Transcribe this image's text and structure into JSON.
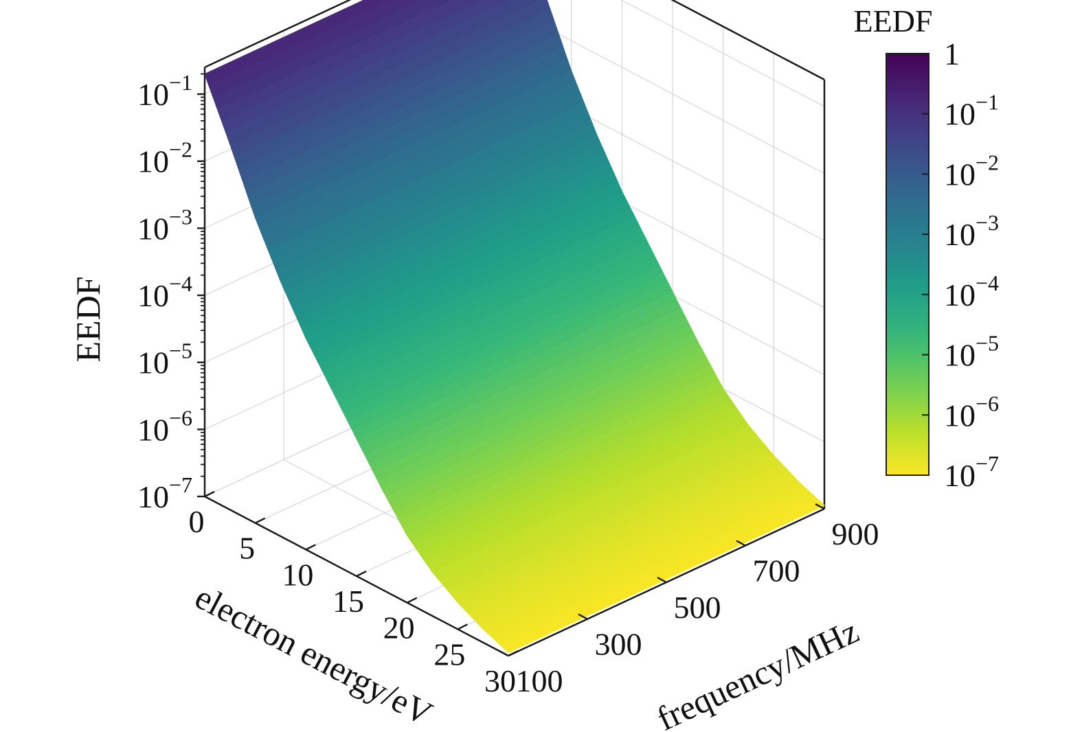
{
  "chart_data": {
    "type": "surface3d",
    "zscale": "log",
    "x_axis": {
      "label": "electron energy/eV",
      "range": [
        0,
        30
      ],
      "ticks": [
        0,
        5,
        10,
        15,
        20,
        25,
        30
      ]
    },
    "y_axis": {
      "label": "frequency/MHz",
      "range": [
        100,
        900
      ],
      "ticks": [
        100,
        300,
        500,
        700,
        900
      ]
    },
    "z_axis": {
      "label": "EEDF",
      "range_exponent": [
        -7,
        -0.6
      ],
      "tick_labels": [
        {
          "exp": -7,
          "base": "10",
          "sup": "−7"
        },
        {
          "exp": -6,
          "base": "10",
          "sup": "−6"
        },
        {
          "exp": -5,
          "base": "10",
          "sup": "−5"
        },
        {
          "exp": -4,
          "base": "10",
          "sup": "−4"
        },
        {
          "exp": -3,
          "base": "10",
          "sup": "−3"
        },
        {
          "exp": -2,
          "base": "10",
          "sup": "−2"
        },
        {
          "exp": -1,
          "base": "10",
          "sup": "−1"
        }
      ]
    },
    "colorbar": {
      "title": "EEDF",
      "colormap": "viridis_reversed",
      "range_exponent": [
        -7,
        0
      ],
      "tick_labels": [
        {
          "exp": 0,
          "base": "1",
          "sup": ""
        },
        {
          "exp": -1,
          "base": "10",
          "sup": "−1"
        },
        {
          "exp": -2,
          "base": "10",
          "sup": "−2"
        },
        {
          "exp": -3,
          "base": "10",
          "sup": "−3"
        },
        {
          "exp": -4,
          "base": "10",
          "sup": "−4"
        },
        {
          "exp": -5,
          "base": "10",
          "sup": "−5"
        },
        {
          "exp": -6,
          "base": "10",
          "sup": "−6"
        },
        {
          "exp": -7,
          "base": "10",
          "sup": "−7"
        }
      ]
    },
    "surface": {
      "energy_eV": [
        0,
        2.5,
        5,
        7.5,
        10,
        12.5,
        15,
        17.5,
        20,
        22.5,
        25,
        27.5,
        30
      ],
      "log10_eedf": [
        -0.7,
        -1.55,
        -2.45,
        -3.2,
        -3.85,
        -4.4,
        -4.95,
        -5.5,
        -6.0,
        -6.35,
        -6.6,
        -6.8,
        -6.95
      ]
    },
    "grid": true
  }
}
